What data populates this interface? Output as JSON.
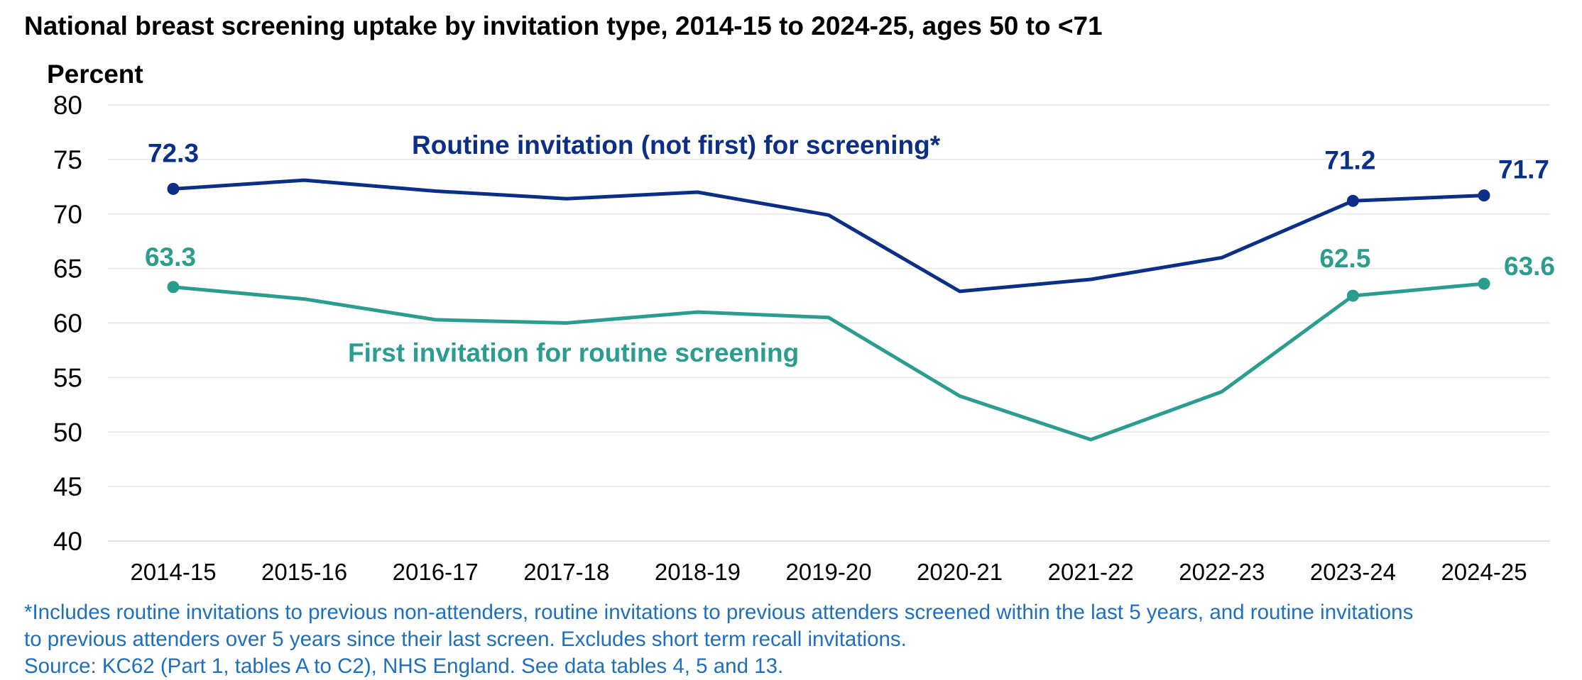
{
  "chart_data": {
    "type": "line",
    "title": "National breast screening uptake by invitation type, 2014-15 to 2024-25, ages 50 to <71",
    "ylabel": "Percent",
    "xlabel": "",
    "ylim": [
      40,
      80
    ],
    "yticks": [
      "40",
      "45",
      "50",
      "55",
      "60",
      "65",
      "70",
      "75",
      "80"
    ],
    "grid": true,
    "categories": [
      "2014-15",
      "2015-16",
      "2016-17",
      "2017-18",
      "2018-19",
      "2019-20",
      "2020-21",
      "2021-22",
      "2022-23",
      "2023-24",
      "2024-25"
    ],
    "series": [
      {
        "name": "Routine invitation (not first) for screening*",
        "color": "#0b2f87",
        "values": [
          72.3,
          73.1,
          72.1,
          71.4,
          72.0,
          69.9,
          62.9,
          64.0,
          66.0,
          71.2,
          71.7
        ],
        "labeled_points": [
          {
            "index": 0,
            "label": "72.3"
          },
          {
            "index": 9,
            "label": "71.2"
          },
          {
            "index": 10,
            "label": "71.7"
          }
        ]
      },
      {
        "name": "First invitation for routine screening",
        "color": "#2a9d8f",
        "values": [
          63.3,
          62.2,
          60.3,
          60.0,
          61.0,
          60.5,
          53.3,
          49.3,
          53.7,
          62.5,
          63.6
        ],
        "labeled_points": [
          {
            "index": 0,
            "label": "63.3"
          },
          {
            "index": 9,
            "label": "62.5"
          },
          {
            "index": 10,
            "label": "63.6"
          }
        ]
      }
    ]
  },
  "footnotes": {
    "line1": "*Includes routine invitations to previous non-attenders, routine invitations to previous attenders screened within the last 5 years, and routine invitations",
    "line2": "to previous attenders over 5 years since their last screen. Excludes short term recall invitations.",
    "line3": "Source: KC62 (Part 1, tables A to C2), NHS England. See data tables 4, 5 and 13."
  }
}
